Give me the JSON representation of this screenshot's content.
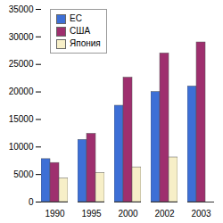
{
  "chart_data": {
    "type": "bar",
    "categories": [
      "1990",
      "1995",
      "2000",
      "2002",
      "2003"
    ],
    "series": [
      {
        "name": "ЕС",
        "color": "#3d6fd6",
        "values": [
          7800,
          11300,
          17500,
          20000,
          21000
        ]
      },
      {
        "name": "США",
        "color": "#9e2f6e",
        "values": [
          7100,
          12400,
          22600,
          27000,
          29000
        ]
      },
      {
        "name": "Япония",
        "color": "#f7efc8",
        "values": [
          4300,
          5300,
          6300,
          8100,
          null
        ]
      }
    ],
    "ylim": [
      0,
      35000
    ],
    "yticks": [
      0,
      5000,
      10000,
      15000,
      20000,
      25000,
      30000,
      35000
    ],
    "grid": false,
    "legend": "top-left"
  }
}
